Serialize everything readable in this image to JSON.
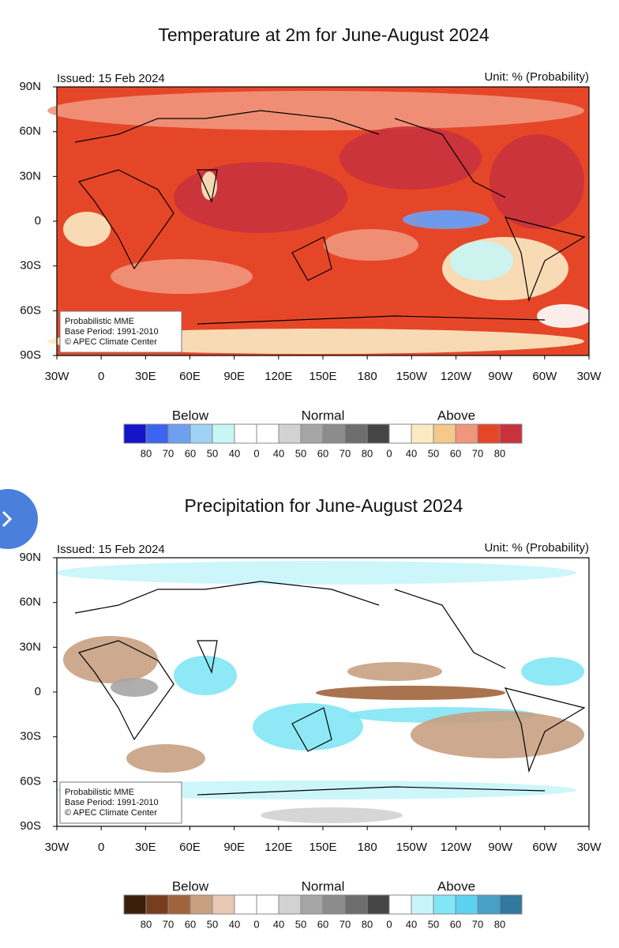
{
  "maps": [
    {
      "title": "Temperature at 2m for June-August 2024",
      "issued": "Issued: 15 Feb 2024",
      "unit": "Unit: % (Probability)",
      "y_labels": [
        "90N",
        "60N",
        "30N",
        "0",
        "30S",
        "60S",
        "90S"
      ],
      "x_labels": [
        "30W",
        "0",
        "30E",
        "60E",
        "90E",
        "120E",
        "150E",
        "180",
        "150W",
        "120W",
        "90W",
        "60W",
        "30W"
      ],
      "note": [
        "Probabilistic MME",
        "Base Period: 1991-2010",
        "© APEC Climate Center"
      ],
      "legend": {
        "groups": [
          "Below",
          "Normal",
          "Above"
        ],
        "colors": [
          "#1414c8",
          "#3c64f0",
          "#6ea0f0",
          "#a0d2f5",
          "#c8f5f5",
          "#ffffff",
          "#ffffff",
          "#d2d2d2",
          "#a5a5a5",
          "#8c8c8c",
          "#6e6e6e",
          "#464646",
          "#ffffff",
          "#faebc3",
          "#f5c88c",
          "#f0967d",
          "#e64628",
          "#c8323c"
        ],
        "ticks": [
          "80",
          "70",
          "60",
          "50",
          "40",
          "0",
          "40",
          "50",
          "60",
          "70",
          "80",
          "0",
          "40",
          "50",
          "60",
          "70",
          "80"
        ]
      }
    },
    {
      "title": "Precipitation for June-August 2024",
      "issued": "Issued: 15 Feb 2024",
      "unit": "Unit: % (Probability)",
      "y_labels": [
        "90N",
        "60N",
        "30N",
        "0",
        "30S",
        "60S",
        "90S"
      ],
      "x_labels": [
        "30W",
        "0",
        "30E",
        "60E",
        "90E",
        "120E",
        "150E",
        "180",
        "150W",
        "120W",
        "90W",
        "60W",
        "30W"
      ],
      "note": [
        "Probabilistic MME",
        "Base Period: 1991-2010",
        "© APEC Climate Center"
      ],
      "legend": {
        "groups": [
          "Below",
          "Normal",
          "Above"
        ],
        "colors": [
          "#3c1e0a",
          "#783c1e",
          "#a0643c",
          "#c8a082",
          "#e6c8b4",
          "#ffffff",
          "#ffffff",
          "#d2d2d2",
          "#a5a5a5",
          "#8c8c8c",
          "#6e6e6e",
          "#464646",
          "#ffffff",
          "#c8f5fa",
          "#82e6f5",
          "#5ad2f0",
          "#46a0c8",
          "#3278a0"
        ],
        "ticks": [
          "80",
          "70",
          "60",
          "50",
          "40",
          "0",
          "40",
          "50",
          "60",
          "70",
          "80",
          "0",
          "40",
          "50",
          "60",
          "70",
          "80"
        ]
      }
    }
  ]
}
